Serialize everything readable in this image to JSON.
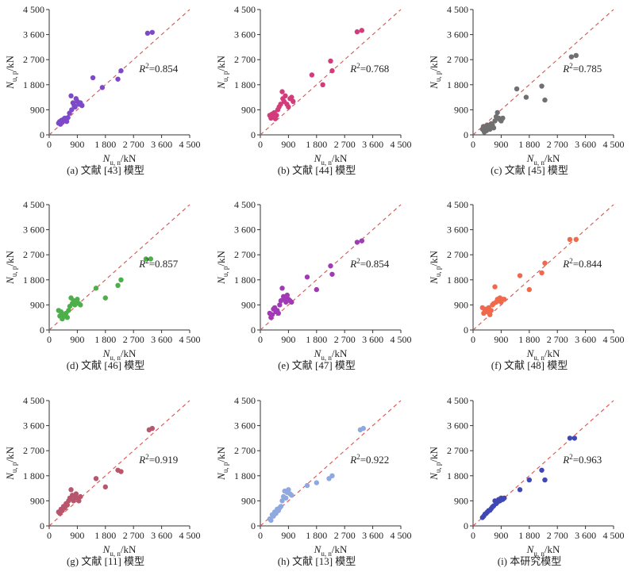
{
  "figure": {
    "axis_tick_labels": [
      "0",
      "900",
      "1 800",
      "2 700",
      "3 600",
      "4 500"
    ],
    "x_axis_label": {
      "symbol": "N",
      "subscript": "u, n",
      "unit": "/kN"
    },
    "y_axis_label": {
      "symbol": "N",
      "subscript": "u, p",
      "unit": "/kN"
    },
    "r2_symbol": "R",
    "r2_sup": "2",
    "reference_line_color": "#d9534f"
  },
  "chart_data": [
    {
      "type": "scatter",
      "caption": "(a) 文献 [43] 模型",
      "r2": "=0.854",
      "color": "#7e49c9",
      "xlim": [
        0,
        4500
      ],
      "ylim": [
        0,
        4500
      ],
      "x": [
        300,
        330,
        360,
        390,
        420,
        460,
        500,
        560,
        600,
        650,
        700,
        720,
        760,
        800,
        830,
        860,
        900,
        950,
        1000,
        1050,
        1400,
        1700,
        2200,
        2300,
        3150,
        3300
      ],
      "y": [
        420,
        470,
        380,
        520,
        450,
        560,
        600,
        480,
        620,
        780,
        1400,
        900,
        1150,
        1050,
        1000,
        1300,
        1200,
        1100,
        1150,
        1050,
        2050,
        1700,
        2000,
        2300,
        3650,
        3680
      ]
    },
    {
      "type": "scatter",
      "caption": "(b) 文献 [44] 模型",
      "r2": "=0.768",
      "color": "#d23c7a",
      "xlim": [
        0,
        4500
      ],
      "ylim": [
        0,
        4500
      ],
      "x": [
        300,
        340,
        380,
        420,
        450,
        480,
        520,
        560,
        600,
        650,
        700,
        720,
        760,
        800,
        850,
        900,
        950,
        1000,
        1050,
        1650,
        2000,
        2250,
        2300,
        3100,
        3250
      ],
      "y": [
        700,
        600,
        750,
        650,
        800,
        580,
        700,
        900,
        1000,
        1100,
        1550,
        1300,
        1200,
        1400,
        1100,
        1000,
        1300,
        1350,
        1200,
        2150,
        1800,
        2650,
        2300,
        3700,
        3750
      ]
    },
    {
      "type": "scatter",
      "caption": "(c) 文献 [45] 模型",
      "r2": "=0.785",
      "color": "#707070",
      "xlim": [
        0,
        4500
      ],
      "ylim": [
        0,
        4500
      ],
      "x": [
        300,
        330,
        360,
        400,
        430,
        460,
        500,
        540,
        580,
        620,
        660,
        700,
        740,
        780,
        820,
        860,
        900,
        950,
        1400,
        1700,
        2200,
        2300,
        3150,
        3300
      ],
      "y": [
        200,
        300,
        100,
        250,
        150,
        350,
        300,
        200,
        400,
        350,
        250,
        500,
        650,
        800,
        600,
        550,
        500,
        600,
        1650,
        1350,
        1750,
        1250,
        2800,
        2850
      ]
    },
    {
      "type": "scatter",
      "caption": "(d) 文献 [46] 模型",
      "r2": "=0.857",
      "color": "#4daf4a",
      "xlim": [
        0,
        4500
      ],
      "ylim": [
        0,
        4500
      ],
      "x": [
        300,
        340,
        380,
        420,
        460,
        500,
        540,
        580,
        620,
        660,
        700,
        740,
        780,
        820,
        860,
        900,
        950,
        1000,
        1500,
        1800,
        2200,
        2300,
        3100,
        3250
      ],
      "y": [
        700,
        500,
        650,
        400,
        550,
        500,
        600,
        450,
        700,
        850,
        1150,
        950,
        1050,
        900,
        1000,
        1100,
        950,
        900,
        1500,
        1150,
        1600,
        1800,
        2550,
        2550
      ]
    },
    {
      "type": "scatter",
      "caption": "(e) 文献 [47] 模型",
      "r2": "=0.854",
      "color": "#a13ab5",
      "xlim": [
        0,
        4500
      ],
      "ylim": [
        0,
        4500
      ],
      "x": [
        300,
        340,
        380,
        420,
        460,
        500,
        540,
        580,
        620,
        660,
        700,
        740,
        780,
        820,
        860,
        900,
        950,
        1000,
        1500,
        1800,
        2250,
        2300,
        3100,
        3250
      ],
      "y": [
        600,
        450,
        550,
        750,
        800,
        650,
        700,
        600,
        900,
        1050,
        1500,
        1200,
        1100,
        1000,
        1250,
        1100,
        1050,
        1000,
        1900,
        1450,
        2300,
        2000,
        3150,
        3200
      ]
    },
    {
      "type": "scatter",
      "caption": "(f) 文献 [48] 模型",
      "r2": "=0.844",
      "color": "#f0694a",
      "xlim": [
        0,
        4500
      ],
      "ylim": [
        0,
        4500
      ],
      "x": [
        300,
        340,
        380,
        420,
        460,
        500,
        540,
        580,
        620,
        660,
        700,
        740,
        780,
        820,
        860,
        900,
        950,
        1000,
        1500,
        1800,
        2200,
        2300,
        3100,
        3300
      ],
      "y": [
        800,
        600,
        700,
        750,
        650,
        800,
        550,
        700,
        900,
        950,
        1550,
        1000,
        1100,
        1050,
        1150,
        1000,
        1100,
        1100,
        1950,
        1450,
        2050,
        2400,
        3250,
        3250
      ]
    },
    {
      "type": "scatter",
      "caption": "(g) 文献 [11] 模型",
      "r2": "=0.919",
      "color": "#b8566e",
      "xlim": [
        0,
        4500
      ],
      "ylim": [
        0,
        4500
      ],
      "x": [
        300,
        340,
        380,
        420,
        460,
        500,
        540,
        580,
        620,
        660,
        700,
        740,
        780,
        820,
        860,
        900,
        950,
        1000,
        1500,
        1800,
        2200,
        2300,
        3200,
        3300
      ],
      "y": [
        500,
        450,
        600,
        550,
        700,
        650,
        800,
        750,
        900,
        1000,
        1300,
        1100,
        900,
        1000,
        1150,
        1000,
        900,
        1050,
        1700,
        1400,
        2000,
        1950,
        3450,
        3500
      ]
    },
    {
      "type": "scatter",
      "caption": "(h) 文献 [13] 模型",
      "r2": "=0.922",
      "color": "#8fa9e0",
      "xlim": [
        0,
        4500
      ],
      "ylim": [
        0,
        4500
      ],
      "x": [
        300,
        340,
        380,
        420,
        460,
        500,
        540,
        580,
        620,
        660,
        700,
        740,
        780,
        820,
        860,
        900,
        950,
        1000,
        1500,
        1800,
        2200,
        2300,
        3200,
        3300
      ],
      "y": [
        250,
        200,
        400,
        350,
        500,
        450,
        600,
        550,
        650,
        700,
        900,
        1050,
        1250,
        1000,
        1200,
        1300,
        1150,
        1100,
        1450,
        1550,
        1700,
        1800,
        3450,
        3500
      ]
    },
    {
      "type": "scatter",
      "caption": "(i) 本研究模型",
      "r2": "=0.963",
      "color": "#3f48b5",
      "xlim": [
        0,
        4500
      ],
      "ylim": [
        0,
        4500
      ],
      "x": [
        300,
        340,
        380,
        420,
        460,
        500,
        540,
        580,
        620,
        660,
        700,
        740,
        780,
        820,
        860,
        900,
        950,
        1000,
        1500,
        1800,
        2200,
        2300,
        3100,
        3250
      ],
      "y": [
        300,
        350,
        420,
        450,
        500,
        550,
        560,
        620,
        680,
        720,
        900,
        800,
        850,
        950,
        900,
        1000,
        950,
        1000,
        1300,
        1650,
        2000,
        1650,
        3150,
        3150
      ]
    }
  ]
}
